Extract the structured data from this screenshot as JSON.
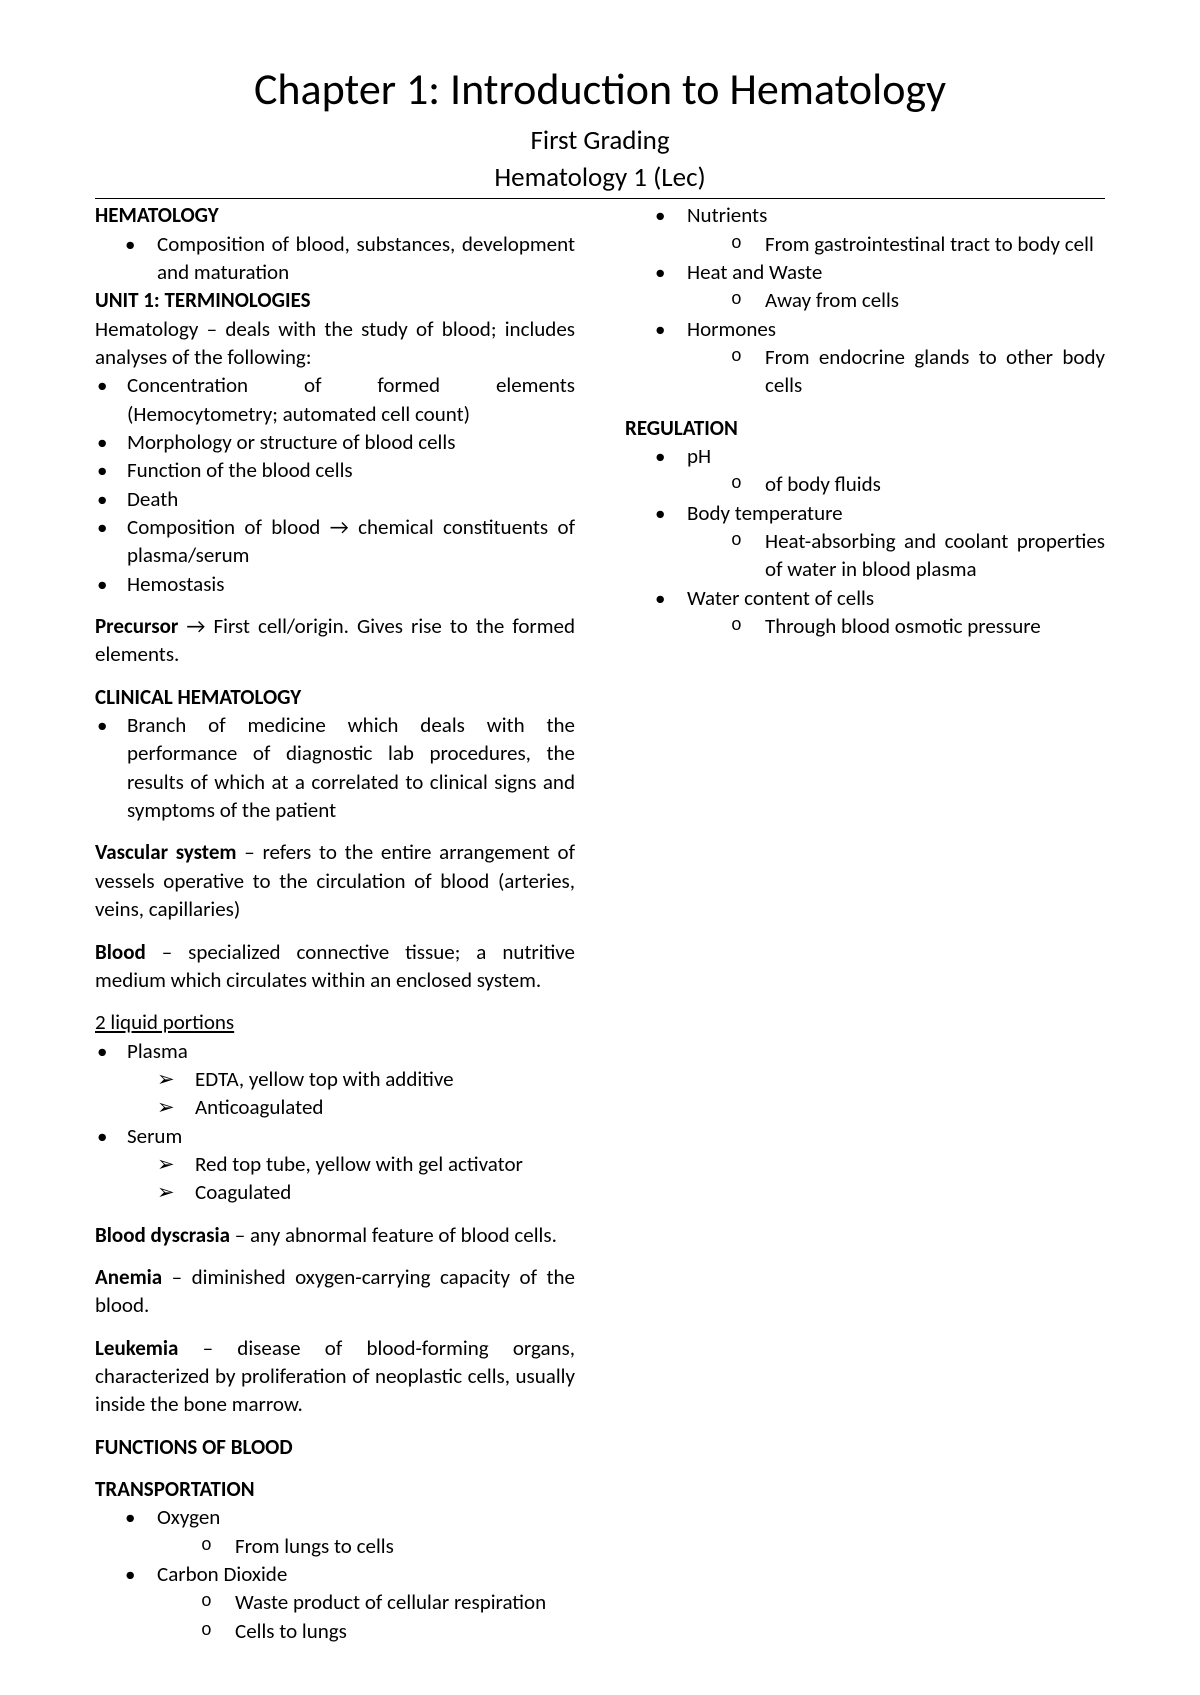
{
  "title": "Chapter 1: Introduction to Hematology",
  "subtitle1": "First Grading",
  "subtitle2": "Hematology 1 (Lec)",
  "hematology_heading": "HEMATOLOGY",
  "hematology_item": "Composition of blood, substances, development and maturation",
  "unit1_heading": "UNIT 1: TERMINOLOGIES",
  "unit1_intro": "Hematology – deals with the study of blood; includes analyses of the following:",
  "unit1_items": [
    "Concentration of formed elements (Hemocytometry; automated cell count)",
    "Morphology or structure of blood cells",
    "Function of the blood cells",
    "Death",
    "Composition of blood → chemical constituents of plasma/serum",
    "Hemostasis"
  ],
  "precursor_label": "Precursor",
  "precursor_text": " → First cell/origin. Gives rise to the formed elements.",
  "clinical_heading": "CLINICAL HEMATOLOGY",
  "clinical_item": "Branch of medicine which deals with the performance of diagnostic lab procedures, the results of which at a correlated to clinical signs and symptoms of the patient",
  "vascular_label": "Vascular system",
  "vascular_text": " – refers to the entire arrangement of vessels operative to the circulation of blood (arteries, veins, capillaries)",
  "blood_label": "Blood",
  "blood_text": " – specialized connective tissue; a nutritive medium which circulates within an enclosed system.",
  "liquid_heading": "2 liquid portions",
  "plasma_label": "Plasma",
  "plasma_items": [
    "EDTA, yellow top with additive",
    "Anticoagulated"
  ],
  "serum_label": "Serum",
  "serum_items": [
    "Red top tube, yellow with gel activator",
    "Coagulated"
  ],
  "dyscrasia_label": "Blood dyscrasia",
  "dyscrasia_text": " – any abnormal feature of blood cells.",
  "anemia_label": "Anemia",
  "anemia_text": " – diminished oxygen-carrying capacity of the blood.",
  "leukemia_label": "Leukemia",
  "leukemia_text": " – disease of blood-forming organs, characterized by proliferation of neoplastic cells, usually inside the bone marrow.",
  "functions_heading": "FUNCTIONS OF BLOOD",
  "transport_heading": "TRANSPORTATION",
  "transport": {
    "oxygen": "Oxygen",
    "oxygen_sub": [
      "From lungs to cells"
    ],
    "co2": "Carbon Dioxide",
    "co2_sub": [
      "Waste product of cellular respiration",
      "Cells to lungs"
    ],
    "nutrients": "Nutrients",
    "nutrients_sub": [
      "From gastrointestinal tract to body cell"
    ],
    "heat": "Heat and Waste",
    "heat_sub": [
      "Away from cells"
    ],
    "hormones": "Hormones",
    "hormones_sub": [
      "From endocrine glands to other body cells"
    ]
  },
  "regulation_heading": "REGULATION",
  "regulation": {
    "ph": "pH",
    "ph_sub": [
      "of body fluids"
    ],
    "temp": "Body temperature",
    "temp_sub": [
      "Heat-absorbing and coolant properties of water in blood plasma"
    ],
    "water": "Water content of cells",
    "water_sub": [
      "Through blood osmotic pressure"
    ]
  }
}
